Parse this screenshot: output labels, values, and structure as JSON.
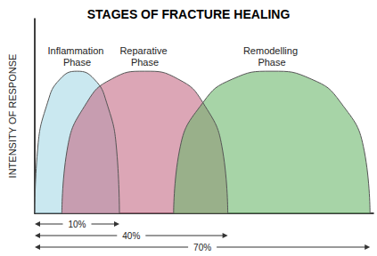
{
  "chart_data": {
    "type": "area",
    "title": "STAGES OF FRACTURE HEALING",
    "y_label": "INTENSITY OF RESPONSE",
    "xlim": [
      0,
      100
    ],
    "ylim": [
      0,
      100
    ],
    "tick_labels": false,
    "grid": false,
    "series": [
      {
        "name": "Inflammation Phase",
        "color": "#a6d8e6",
        "x": [
          0,
          0.8,
          3.8,
          7.5,
          12.5,
          17.5,
          21.2,
          24.2,
          25
        ],
        "values": [
          0,
          32,
          57,
          69,
          73,
          69,
          57,
          32,
          0
        ]
      },
      {
        "name": "Reparative Phase",
        "color": "#c46a86",
        "x": [
          8,
          9.5,
          15.4,
          22.7,
          32.5,
          42.3,
          49.6,
          55.5,
          57
        ],
        "values": [
          0,
          32,
          57,
          69,
          73,
          69,
          57,
          32,
          0
        ]
      },
      {
        "name": "Remodelling Phase",
        "color": "#6cb86c",
        "x": [
          41,
          42.7,
          49.7,
          58.4,
          70,
          81.6,
          90.3,
          97.3,
          99
        ],
        "values": [
          0,
          32,
          57,
          69,
          73,
          69,
          57,
          32,
          0
        ]
      }
    ],
    "annotations": [
      {
        "text": "10%",
        "from": 0,
        "to": 25
      },
      {
        "text": "40%",
        "from": 0,
        "to": 57
      },
      {
        "text": "70%",
        "from": 0,
        "to": 99
      }
    ]
  }
}
